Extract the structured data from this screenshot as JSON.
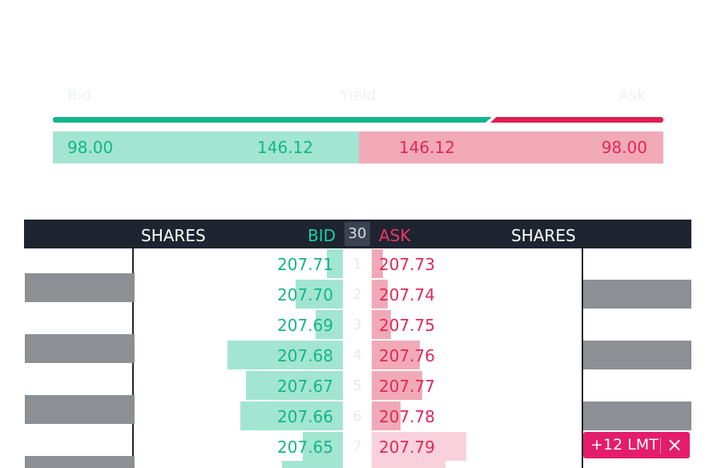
{
  "yield_bar": {
    "bid_label": "Bid",
    "yield_label": "Yield",
    "ask_label": "Ask",
    "bid_price": "98.00",
    "bid_yield": "146.12",
    "ask_yield": "146.12",
    "ask_price": "98.00"
  },
  "orderbook": {
    "headers": {
      "shares_left": "SHARES",
      "bid": "BID",
      "depth": "30",
      "ask": "ASK",
      "shares_right": "SHARES"
    },
    "rows": [
      {
        "level": "1",
        "bid": "207.71",
        "ask": "207.73"
      },
      {
        "level": "2",
        "bid": "207.70",
        "ask": "207.74"
      },
      {
        "level": "3",
        "bid": "207.69",
        "ask": "207.75"
      },
      {
        "level": "4",
        "bid": "207.68",
        "ask": "207.76"
      },
      {
        "level": "5",
        "bid": "207.67",
        "ask": "207.77"
      },
      {
        "level": "6",
        "bid": "207.66",
        "ask": "207.78"
      },
      {
        "level": "7",
        "bid": "207.65",
        "ask": "207.79"
      }
    ]
  },
  "order_tag": {
    "label": "+12 LMT",
    "close_icon": "×"
  },
  "colors": {
    "bid": "#13b58a",
    "ask": "#e1285a",
    "header_bg": "#1e2430",
    "order_tag": "#e41d6b"
  }
}
